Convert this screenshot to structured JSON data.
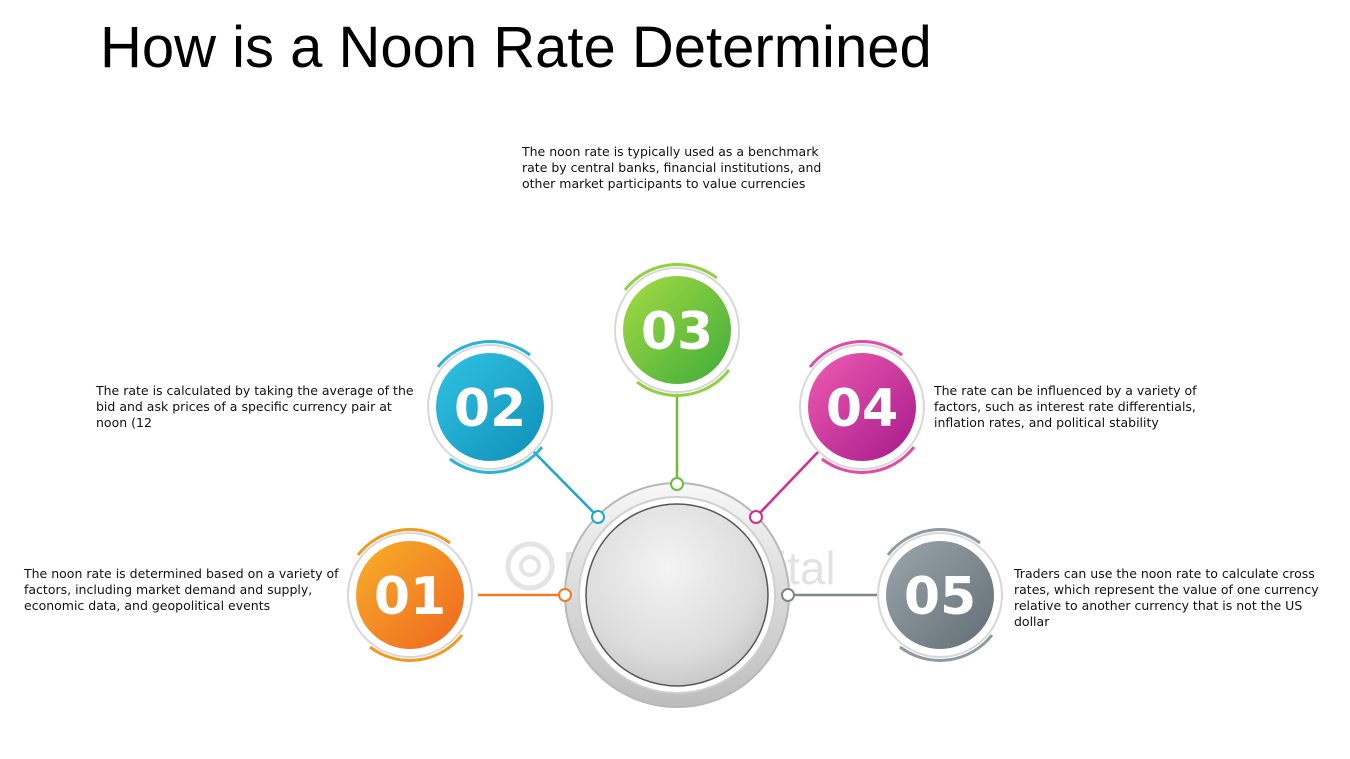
{
  "title": "How is a Noon Rate Determined",
  "watermark": "FasterCapital",
  "steps": [
    {
      "number": "01",
      "color": "#f39a1e",
      "color_dark": "#ee6a1a",
      "text": "The noon rate is determined based on a variety of factors, including market demand and supply, economic data, and geopolitical events"
    },
    {
      "number": "02",
      "color": "#27b4d6",
      "color_dark": "#1296bd",
      "text": "The rate is calculated by taking the average of the bid and ask prices of a specific currency pair at noon (12"
    },
    {
      "number": "03",
      "color": "#8fd13f",
      "color_dark": "#4fb13a",
      "text": "The noon rate is typically used as a benchmark rate by central banks, financial institutions, and other market participants to value currencies"
    },
    {
      "number": "04",
      "color": "#e24aa6",
      "color_dark": "#b51d8e",
      "text": "The rate can be influenced by a variety of factors, such as interest rate differentials, inflation rates, and political stability"
    },
    {
      "number": "05",
      "color": "#8e9aa1",
      "color_dark": "#6b767d",
      "text": "Traders can use the noon rate to calculate cross rates, which represent the value of one currency relative to another currency that is not the US dollar"
    }
  ]
}
